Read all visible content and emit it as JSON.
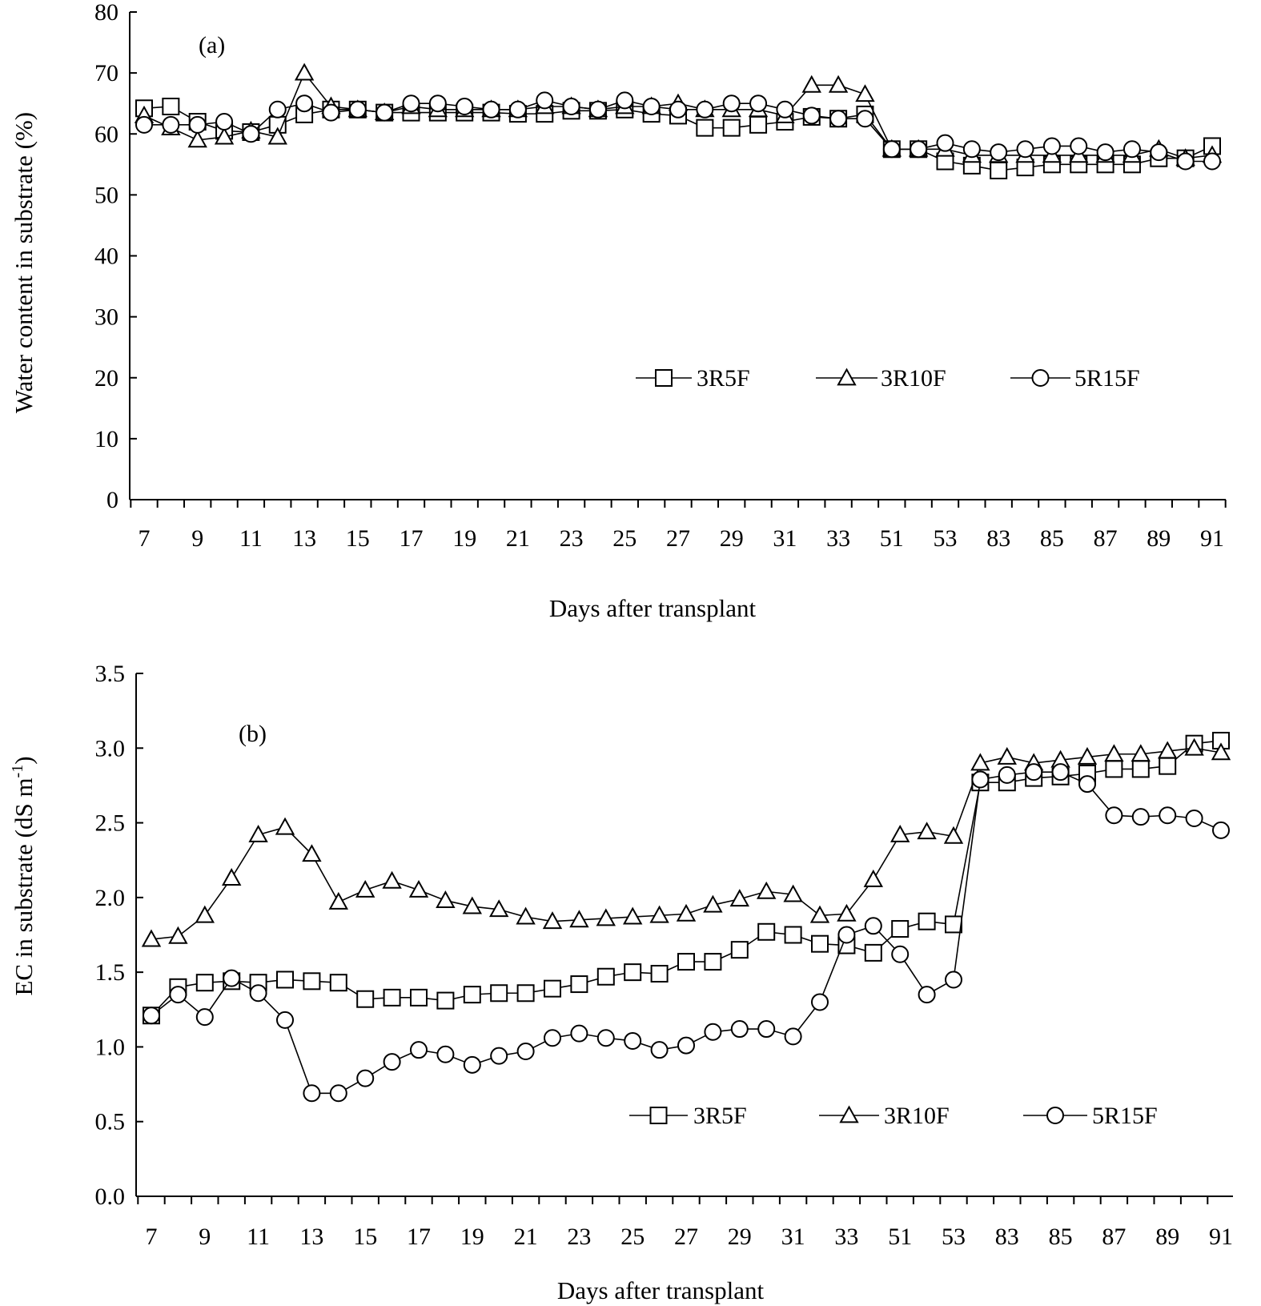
{
  "colors": {
    "line": "#000000",
    "marker_fill": "#ffffff",
    "background": "#ffffff"
  },
  "chart_data": [
    {
      "type": "line",
      "panel_label": "(a)",
      "xlabel": "Days after transplant",
      "ylabel": "Water content in substrate (%)",
      "ylim": [
        0,
        80
      ],
      "yticks": [
        "0",
        "10",
        "20",
        "30",
        "40",
        "50",
        "60",
        "70",
        "80"
      ],
      "x_categories": [
        "7",
        "8",
        "9",
        "10",
        "11",
        "12",
        "13",
        "14",
        "15",
        "16",
        "17",
        "18",
        "19",
        "20",
        "21",
        "22",
        "23",
        "24",
        "25",
        "26",
        "27",
        "28",
        "29",
        "30",
        "31",
        "32",
        "33",
        "34",
        "51",
        "52",
        "53",
        "54",
        "83",
        "84",
        "85",
        "86",
        "87",
        "88",
        "89",
        "90",
        "91"
      ],
      "x_tick_labels": [
        "7",
        "9",
        "11",
        "13",
        "15",
        "17",
        "19",
        "21",
        "23",
        "25",
        "27",
        "29",
        "31",
        "33",
        "51",
        "53",
        "83",
        "85",
        "87",
        "89",
        "91"
      ],
      "legend_position": "center-right",
      "series": [
        {
          "name": "3R5F",
          "marker": "square",
          "values": [
            64.2,
            64.5,
            62.0,
            60.5,
            60.3,
            61.5,
            63.2,
            64.0,
            64.0,
            63.5,
            63.5,
            63.5,
            63.5,
            63.5,
            63.3,
            63.3,
            63.8,
            63.8,
            64.0,
            63.3,
            63.0,
            61.0,
            61.0,
            61.5,
            62.0,
            62.8,
            62.5,
            63.2,
            57.5,
            57.5,
            55.5,
            54.8,
            54.0,
            54.5,
            55.0,
            55.0,
            55.0,
            55.0,
            56.0,
            56.0,
            58.0
          ]
        },
        {
          "name": "3R10F",
          "marker": "triangle",
          "values": [
            63.0,
            61.0,
            59.0,
            59.5,
            60.5,
            59.5,
            70.0,
            64.5,
            64.0,
            63.5,
            64.5,
            64.0,
            64.0,
            64.0,
            64.0,
            64.5,
            64.5,
            64.0,
            64.5,
            64.5,
            65.0,
            64.0,
            64.0,
            64.0,
            63.0,
            68.0,
            68.0,
            66.5,
            57.5,
            57.5,
            57.5,
            56.5,
            56.5,
            56.5,
            56.5,
            56.5,
            56.5,
            56.5,
            57.5,
            56.0,
            56.5
          ]
        },
        {
          "name": "5R15F",
          "marker": "circle",
          "values": [
            61.5,
            61.5,
            61.5,
            62.0,
            60.0,
            64.0,
            65.0,
            63.5,
            64.0,
            63.5,
            65.0,
            65.0,
            64.5,
            64.0,
            64.0,
            65.5,
            64.5,
            64.0,
            65.5,
            64.5,
            64.0,
            64.0,
            65.0,
            65.0,
            64.0,
            63.0,
            62.5,
            62.5,
            57.5,
            57.5,
            58.5,
            57.5,
            57.0,
            57.5,
            58.0,
            58.0,
            57.0,
            57.5,
            57.0,
            55.5,
            55.5
          ]
        }
      ]
    },
    {
      "type": "line",
      "panel_label": "(b)",
      "xlabel": "Days after transplant",
      "ylabel_main": "EC in substrate (dS m",
      "ylabel_sup": "-1",
      "ylabel_end": ")",
      "ylim": [
        0,
        3.5
      ],
      "yticks": [
        "0.0",
        "0.5",
        "1.0",
        "1.5",
        "2.0",
        "2.5",
        "3.0",
        "3.5"
      ],
      "x_categories": [
        "7",
        "8",
        "9",
        "10",
        "11",
        "12",
        "13",
        "14",
        "15",
        "16",
        "17",
        "18",
        "19",
        "20",
        "21",
        "22",
        "23",
        "24",
        "25",
        "26",
        "27",
        "28",
        "29",
        "30",
        "31",
        "32",
        "33",
        "34",
        "51",
        "52",
        "53",
        "54",
        "83",
        "84",
        "85",
        "86",
        "87",
        "88",
        "89",
        "90",
        "91"
      ],
      "x_tick_labels": [
        "7",
        "9",
        "11",
        "13",
        "15",
        "17",
        "19",
        "21",
        "23",
        "25",
        "27",
        "29",
        "31",
        "33",
        "51",
        "53",
        "83",
        "85",
        "87",
        "89",
        "91"
      ],
      "legend_position": "lower-right",
      "series": [
        {
          "name": "3R5F",
          "marker": "square",
          "values": [
            1.21,
            1.4,
            1.43,
            1.44,
            1.43,
            1.45,
            1.44,
            1.43,
            1.32,
            1.33,
            1.33,
            1.31,
            1.35,
            1.36,
            1.36,
            1.39,
            1.42,
            1.47,
            1.5,
            1.49,
            1.57,
            1.57,
            1.65,
            1.77,
            1.75,
            1.69,
            1.68,
            1.63,
            1.79,
            1.84,
            1.82,
            2.77,
            2.77,
            2.8,
            2.81,
            2.83,
            2.86,
            2.86,
            2.88,
            3.03,
            3.05
          ]
        },
        {
          "name": "3R10F",
          "marker": "triangle",
          "values": [
            1.72,
            1.74,
            1.88,
            2.13,
            2.42,
            2.47,
            2.29,
            1.97,
            2.05,
            2.11,
            2.05,
            1.98,
            1.94,
            1.92,
            1.87,
            1.84,
            1.85,
            1.86,
            1.87,
            1.88,
            1.89,
            1.95,
            1.99,
            2.04,
            2.02,
            1.88,
            1.89,
            2.12,
            2.42,
            2.44,
            2.41,
            2.9,
            2.94,
            2.9,
            2.92,
            2.94,
            2.96,
            2.96,
            2.98,
            3.0,
            2.97
          ]
        },
        {
          "name": "5R15F",
          "marker": "circle",
          "values": [
            1.21,
            1.35,
            1.2,
            1.46,
            1.36,
            1.18,
            0.69,
            0.69,
            0.79,
            0.9,
            0.98,
            0.95,
            0.88,
            0.94,
            0.97,
            1.06,
            1.09,
            1.06,
            1.04,
            0.98,
            1.01,
            1.1,
            1.12,
            1.12,
            1.07,
            1.3,
            1.75,
            1.81,
            1.62,
            1.35,
            1.45,
            2.79,
            2.82,
            2.84,
            2.84,
            2.76,
            2.55,
            2.54,
            2.55,
            2.53,
            2.45
          ]
        }
      ]
    }
  ]
}
